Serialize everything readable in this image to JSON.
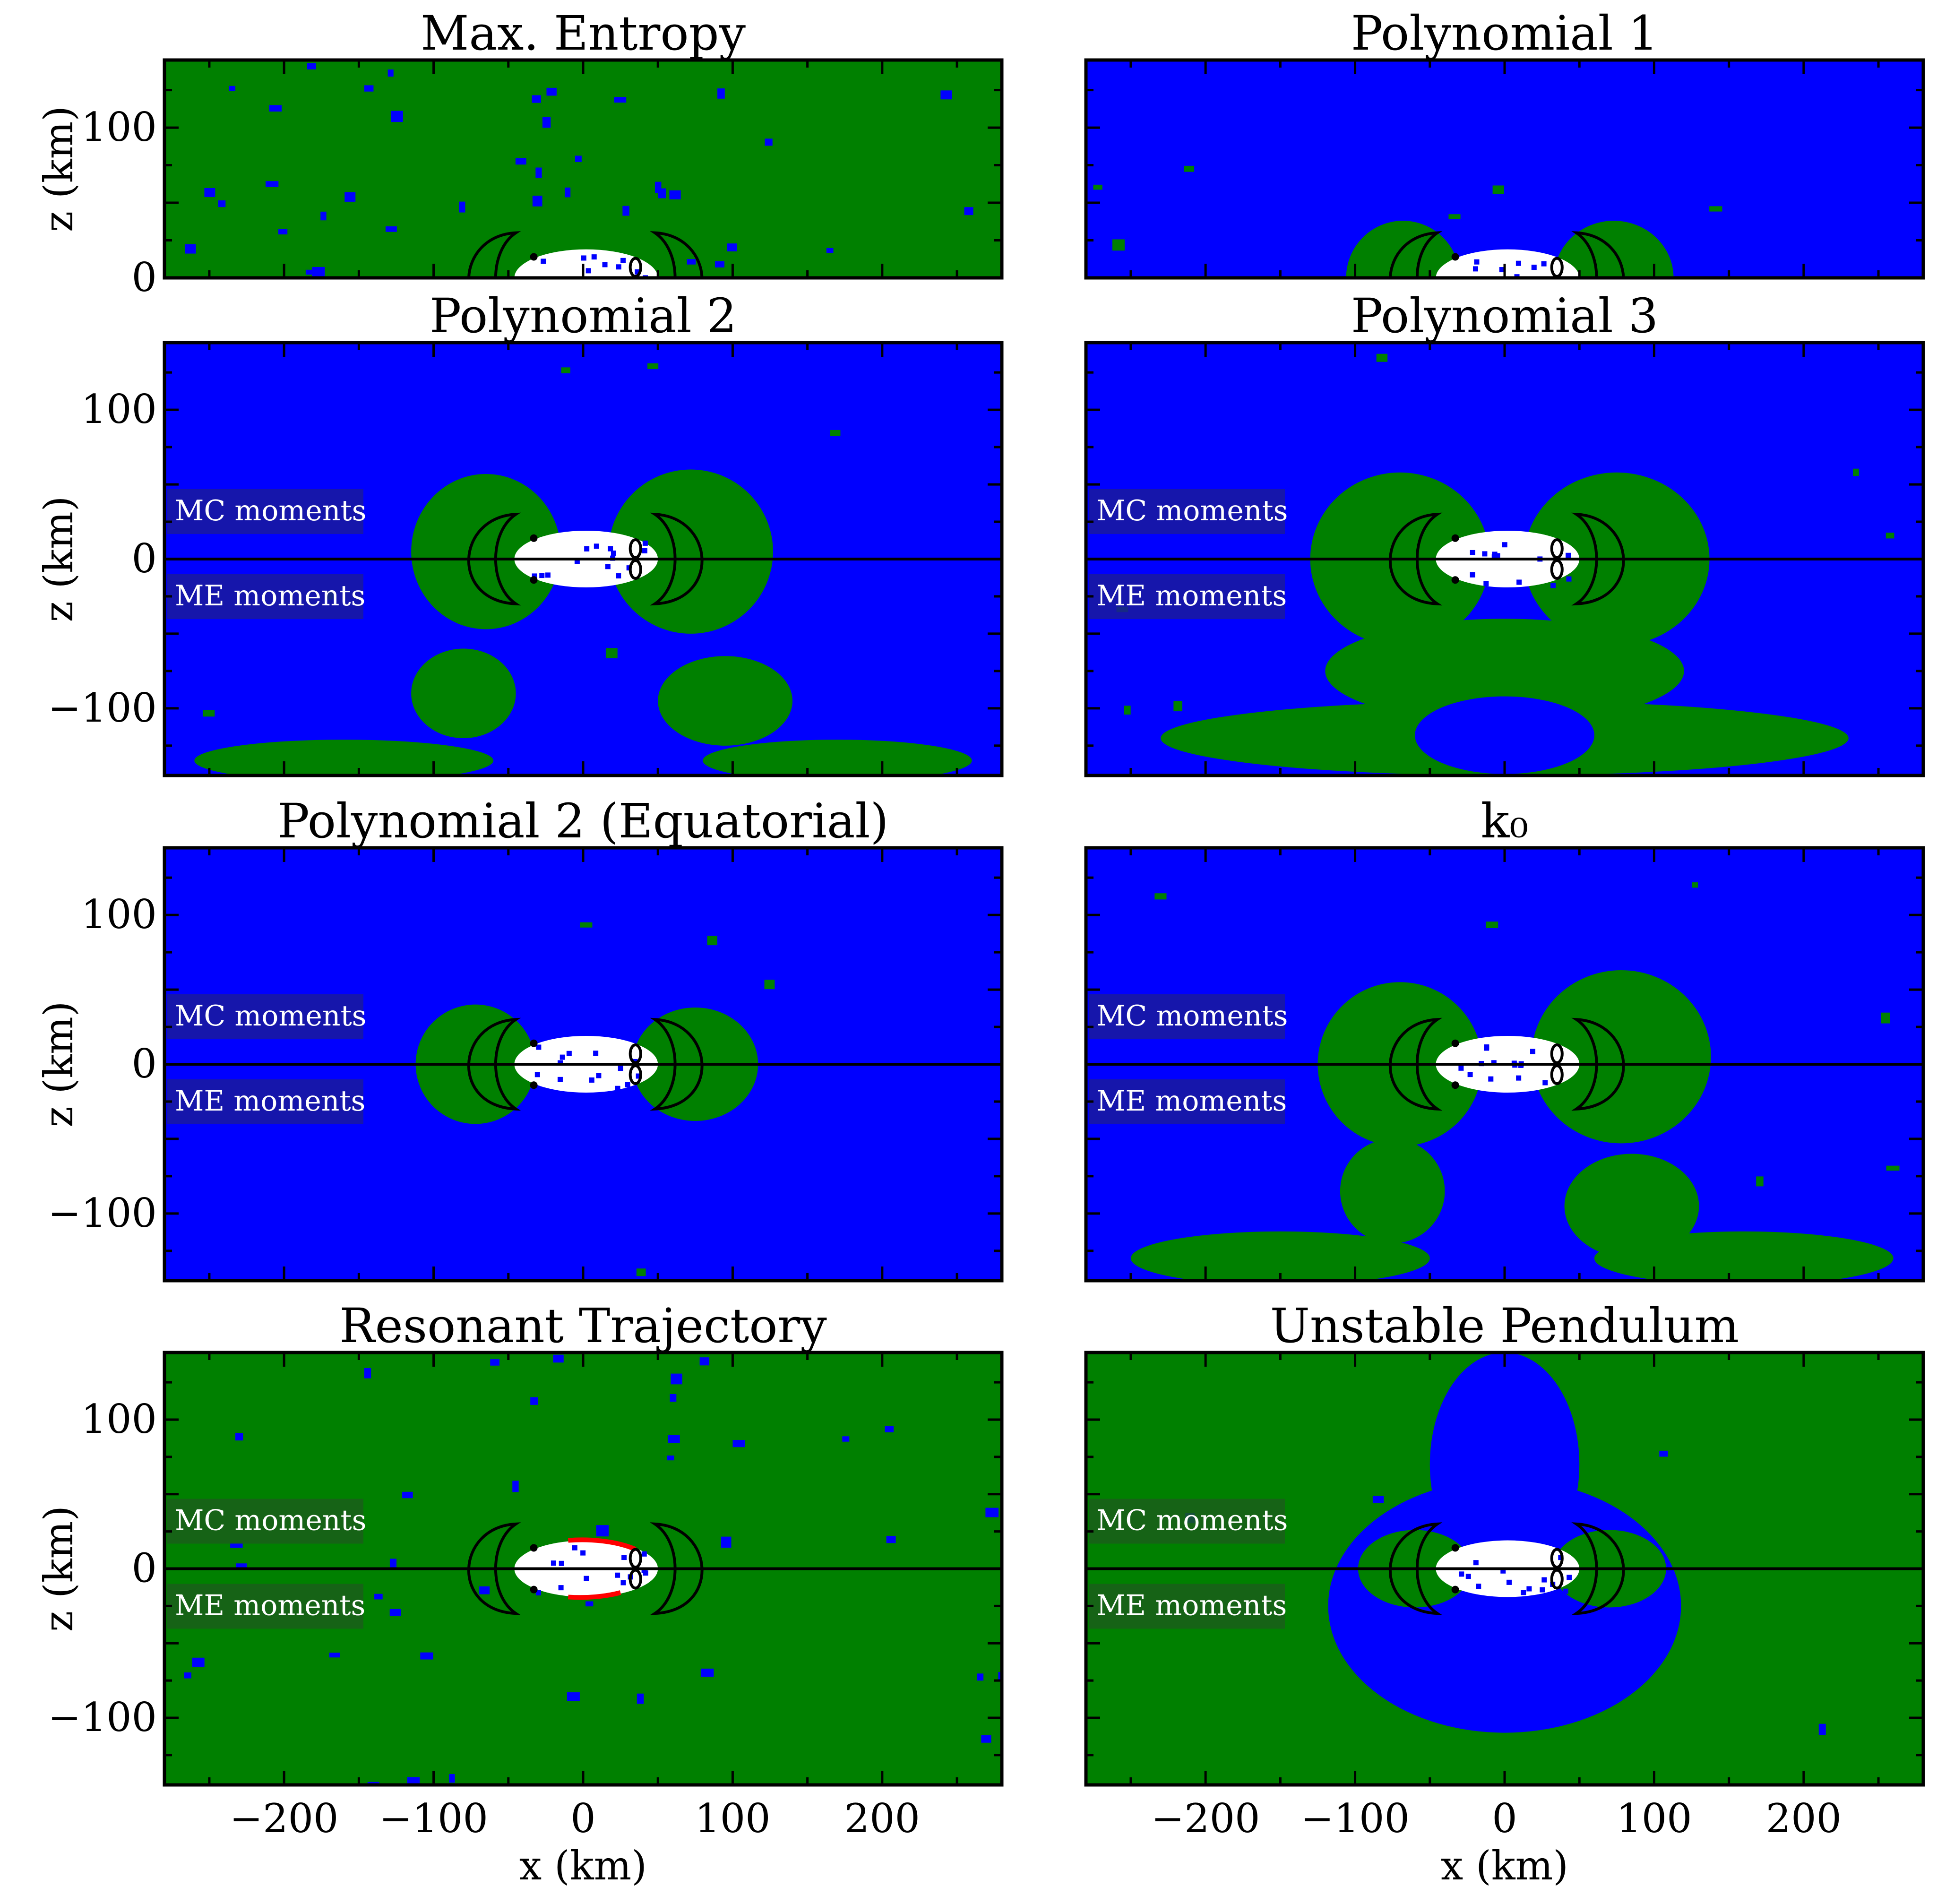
{
  "colors": {
    "blue": "#0000ff",
    "green": "#008000",
    "white": "#ffffff",
    "red": "#ff0000",
    "contour": "#000000",
    "label_box_blue": "#1a1a9c",
    "label_box_green": "#1a5e1a"
  },
  "labels": {
    "x_axis": "x (km)",
    "y_axis": "z (km)",
    "mc": "MC moments",
    "me": "ME moments"
  },
  "chart_data": [
    {
      "type": "heatmap",
      "title": "Max. Entropy",
      "bg": "green",
      "label_box": "",
      "xlim": [
        -280,
        280
      ],
      "ylim": [
        0,
        145
      ],
      "yticks": [
        0,
        100
      ],
      "xticks": [],
      "ylabel": "z (km)",
      "xlabel": "",
      "plumes": [],
      "blobs": []
    },
    {
      "type": "heatmap",
      "title": "Polynomial 1",
      "bg": "blue",
      "label_box": "",
      "xlim": [
        -280,
        280
      ],
      "ylim": [
        0,
        145
      ],
      "yticks": [],
      "xticks": [],
      "ylabel": "",
      "xlabel": "",
      "plumes": [
        {
          "cx": -68,
          "cz": 0,
          "rx": 38,
          "rz": 38,
          "color": "green"
        },
        {
          "cx": 73,
          "cz": 0,
          "rx": 40,
          "rz": 38,
          "color": "green"
        }
      ],
      "blobs": []
    },
    {
      "type": "heatmap",
      "title": "Polynomial 2",
      "bg": "blue",
      "label_box": "blue",
      "xlim": [
        -280,
        280
      ],
      "ylim": [
        -145,
        145
      ],
      "yticks": [
        -100,
        0,
        100
      ],
      "xticks": [],
      "ylabel": "z (km)",
      "xlabel": "",
      "plumes": [
        {
          "cx": -65,
          "cz": 5,
          "rx": 50,
          "rz": 52,
          "color": "green"
        },
        {
          "cx": 72,
          "cz": 5,
          "rx": 55,
          "rz": 55,
          "color": "green"
        }
      ],
      "blobs": [
        {
          "cx": -80,
          "cz": -90,
          "rx": 35,
          "rz": 30,
          "color": "green"
        },
        {
          "cx": 95,
          "cz": -95,
          "rx": 45,
          "rz": 30,
          "color": "green"
        },
        {
          "cx": -160,
          "cz": -135,
          "rx": 100,
          "rz": 14,
          "color": "green"
        },
        {
          "cx": 170,
          "cz": -135,
          "rx": 90,
          "rz": 14,
          "color": "green"
        }
      ]
    },
    {
      "type": "heatmap",
      "title": "Polynomial 3",
      "bg": "blue",
      "label_box": "blue",
      "xlim": [
        -280,
        280
      ],
      "ylim": [
        -145,
        145
      ],
      "yticks": [],
      "xticks": [],
      "ylabel": "",
      "xlabel": "",
      "plumes": [
        {
          "cx": -70,
          "cz": 0,
          "rx": 60,
          "rz": 58,
          "color": "green"
        },
        {
          "cx": 75,
          "cz": 0,
          "rx": 62,
          "rz": 58,
          "color": "green"
        }
      ],
      "blobs": [
        {
          "cx": 0,
          "cz": -75,
          "rx": 120,
          "rz": 35,
          "color": "green"
        },
        {
          "cx": 0,
          "cz": -120,
          "rx": 230,
          "rz": 25,
          "color": "green"
        },
        {
          "cx": 0,
          "cz": -118,
          "rx": 60,
          "rz": 26,
          "color": "blue"
        }
      ]
    },
    {
      "type": "heatmap",
      "title": "Polynomial 2 (Equatorial)",
      "bg": "blue",
      "label_box": "blue",
      "xlim": [
        -280,
        280
      ],
      "ylim": [
        -145,
        145
      ],
      "yticks": [
        -100,
        0,
        100
      ],
      "xticks": [],
      "ylabel": "z (km)",
      "xlabel": "",
      "plumes": [
        {
          "cx": -72,
          "cz": 0,
          "rx": 40,
          "rz": 40,
          "color": "green"
        },
        {
          "cx": 75,
          "cz": 0,
          "rx": 42,
          "rz": 38,
          "color": "green"
        }
      ],
      "blobs": []
    },
    {
      "type": "heatmap",
      "title": "k₀",
      "bg": "blue",
      "label_box": "blue",
      "xlim": [
        -280,
        280
      ],
      "ylim": [
        -145,
        145
      ],
      "yticks": [],
      "xticks": [],
      "ylabel": "",
      "xlabel": "",
      "plumes": [
        {
          "cx": -70,
          "cz": 0,
          "rx": 55,
          "rz": 55,
          "color": "green"
        },
        {
          "cx": 78,
          "cz": 5,
          "rx": 60,
          "rz": 58,
          "color": "green"
        }
      ],
      "blobs": [
        {
          "cx": -75,
          "cz": -85,
          "rx": 35,
          "rz": 35,
          "color": "green"
        },
        {
          "cx": 85,
          "cz": -95,
          "rx": 45,
          "rz": 35,
          "color": "green"
        },
        {
          "cx": -150,
          "cz": -130,
          "rx": 100,
          "rz": 18,
          "color": "green"
        },
        {
          "cx": 160,
          "cz": -130,
          "rx": 100,
          "rz": 18,
          "color": "green"
        }
      ]
    },
    {
      "type": "heatmap",
      "title": "Resonant Trajectory",
      "bg": "green",
      "label_box": "green",
      "xlim": [
        -280,
        280
      ],
      "ylim": [
        -145,
        145
      ],
      "yticks": [
        -100,
        0,
        100
      ],
      "xticks": [
        -200,
        -100,
        0,
        100,
        200
      ],
      "ylabel": "z (km)",
      "xlabel": "x (km)",
      "plumes": [],
      "blobs": []
    },
    {
      "type": "heatmap",
      "title": "Unstable Pendulum",
      "bg": "green",
      "label_box": "green",
      "xlim": [
        -280,
        280
      ],
      "ylim": [
        -145,
        145
      ],
      "yticks": [],
      "xticks": [
        -200,
        -100,
        0,
        100,
        200
      ],
      "ylabel": "",
      "xlabel": "x (km)",
      "plumes": [],
      "blobs": [
        {
          "cx": 0,
          "cz": -25,
          "rx": 118,
          "rz": 85,
          "color": "blue"
        },
        {
          "cx": 0,
          "cz": 70,
          "rx": 50,
          "rz": 75,
          "color": "blue"
        },
        {
          "cx": -60,
          "cz": 0,
          "rx": 38,
          "rz": 26,
          "color": "green"
        },
        {
          "cx": 70,
          "cz": 0,
          "rx": 38,
          "rz": 26,
          "color": "green"
        }
      ]
    }
  ]
}
